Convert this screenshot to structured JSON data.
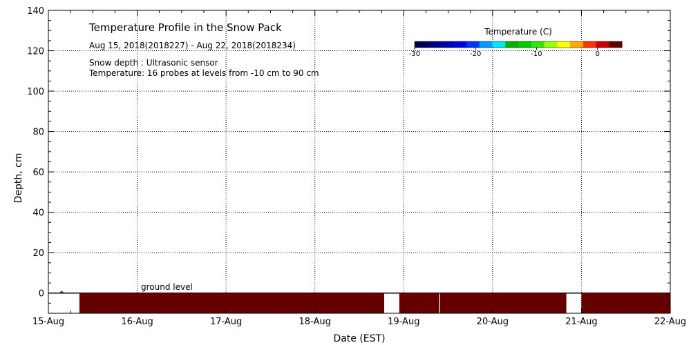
{
  "chart_data": {
    "type": "heatmap",
    "title": "Temperature Profile in the Snow Pack",
    "date_range": "Aug 15, 2018(2018227) - Aug 22, 2018(2018234)",
    "notes": [
      "Snow depth : Ultrasonic sensor",
      "Temperature: 16 probes at levels from -10 cm to 90 cm"
    ],
    "xlabel": "Date (EST)",
    "ylabel": "Depth, cm",
    "x_categories": [
      "15-Aug",
      "16-Aug",
      "17-Aug",
      "18-Aug",
      "19-Aug",
      "20-Aug",
      "21-Aug",
      "22-Aug"
    ],
    "xlim_days": [
      0,
      7
    ],
    "ylim": [
      -10,
      140
    ],
    "y_ticks": [
      0,
      20,
      40,
      60,
      80,
      100,
      120,
      140
    ],
    "grid": true,
    "ground_label": "ground level",
    "ground_level": 0,
    "soil_layer": {
      "depth_range": [
        -10,
        0
      ],
      "temperature_color": "#660000",
      "segments_days": [
        [
          0.35,
          3.78
        ],
        [
          3.95,
          4.4
        ],
        [
          4.41,
          5.83
        ],
        [
          6.0,
          7.0
        ]
      ]
    },
    "colorbar": {
      "title": "Temperature (C)",
      "range": [
        -30,
        4
      ],
      "tick_labels": [
        "-30",
        "-20",
        "-10",
        "0"
      ],
      "tick_values": [
        -30,
        -20,
        -10,
        0
      ],
      "colors": [
        "#00004d",
        "#000080",
        "#0000b3",
        "#0000e6",
        "#0033ff",
        "#0099ff",
        "#00e6ff",
        "#00b300",
        "#00cc00",
        "#33e600",
        "#99ff00",
        "#ffff00",
        "#ffaa00",
        "#ff3300",
        "#cc0000",
        "#660000"
      ]
    },
    "snow_depth": [
      {
        "day": 0.15,
        "depth": 0.5
      }
    ]
  }
}
